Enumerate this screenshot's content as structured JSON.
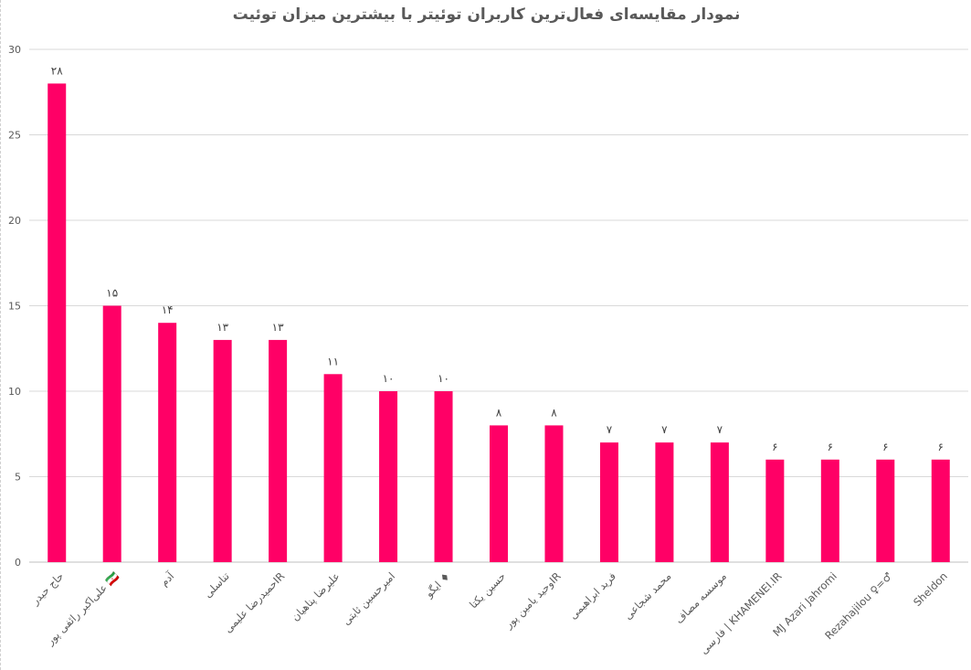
{
  "chart_data": {
    "type": "bar",
    "title": "نمودار مقایسه‌ای فعال‌ترین کاربران توئیتر با بیشترین میزان توئیت",
    "xlabel": "",
    "ylabel": "",
    "ylim": [
      0,
      30
    ],
    "yticks": [
      "0",
      "5",
      "10",
      "15",
      "20",
      "25",
      "30"
    ],
    "grid": true,
    "legend": "none",
    "bar_color": "#ff0066",
    "categories": [
      "حاج حیدر",
      "علی‌اکبر رائفی‌ پور 🇮🇷",
      "آدم",
      "تناسلی",
      "حمیدرضا علیمیIR",
      "علیرضا پناهیان",
      "امیرحسین ثابتی",
      "ایگو ♦",
      "حسین یکتا",
      "وحید یامین پورIR",
      "فرید ابراهیمی",
      "محمد شجاعی",
      "موسسه مصاف",
      "فارسی | KHAMENEI.IR",
      "MJ Azari Jahromi",
      "Rezahajilou ♀=♂",
      "Sheldon"
    ],
    "values": [
      28,
      15,
      14,
      13,
      13,
      11,
      10,
      10,
      8,
      8,
      7,
      7,
      7,
      6,
      6,
      6,
      6
    ],
    "value_labels": [
      "۲۸",
      "۱۵",
      "۱۴",
      "۱۳",
      "۱۳",
      "۱۱",
      "۱۰",
      "۱۰",
      "۸",
      "۸",
      "۷",
      "۷",
      "۷",
      "۶",
      "۶",
      "۶",
      "۶"
    ]
  }
}
